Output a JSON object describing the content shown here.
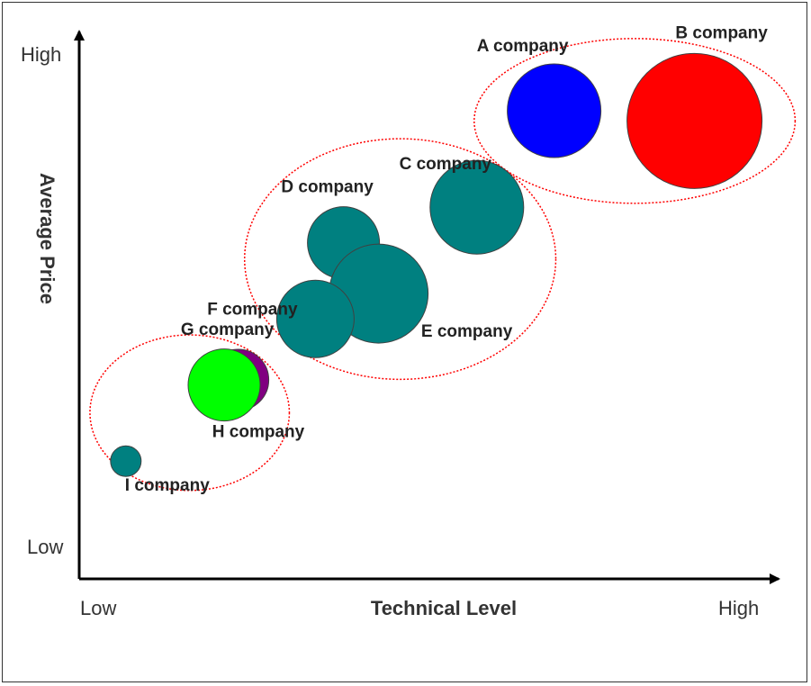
{
  "chart_data": {
    "type": "bubble",
    "title": "",
    "xlabel": "Technical Level",
    "ylabel": "Average Price",
    "x_ticks": [
      "Low",
      "High"
    ],
    "y_ticks": [
      "Low",
      "High"
    ],
    "xlim": [
      0,
      100
    ],
    "ylim": [
      0,
      100
    ],
    "grid": false,
    "legend": "none",
    "points": [
      {
        "label": "A company",
        "x": 67,
        "y": 89,
        "size": 52,
        "color": "#0000ff"
      },
      {
        "label": "B company",
        "x": 87,
        "y": 87,
        "size": 75,
        "color": "#ff0000"
      },
      {
        "label": "C company",
        "x": 56,
        "y": 70,
        "size": 52,
        "color": "#008080"
      },
      {
        "label": "D company",
        "x": 37,
        "y": 63,
        "size": 40,
        "color": "#008080"
      },
      {
        "label": "E company",
        "x": 42,
        "y": 53,
        "size": 55,
        "color": "#008080"
      },
      {
        "label": "F company",
        "x": 33,
        "y": 48,
        "size": 43,
        "color": "#008080"
      },
      {
        "label": "G company",
        "x": 22,
        "y": 36,
        "size": 34,
        "color": "#800080"
      },
      {
        "label": "H company",
        "x": 20,
        "y": 35,
        "size": 40,
        "color": "#00ff00"
      },
      {
        "label": "I company",
        "x": 6,
        "y": 20,
        "size": 17,
        "color": "#008080"
      }
    ],
    "groups": [
      {
        "members": [
          "A company",
          "B company"
        ],
        "outline": "#ff0000"
      },
      {
        "members": [
          "C company",
          "D company",
          "E company",
          "F company"
        ],
        "outline": "#ff0000"
      },
      {
        "members": [
          "G company",
          "H company",
          "I company"
        ],
        "outline": "#ff0000"
      }
    ]
  }
}
